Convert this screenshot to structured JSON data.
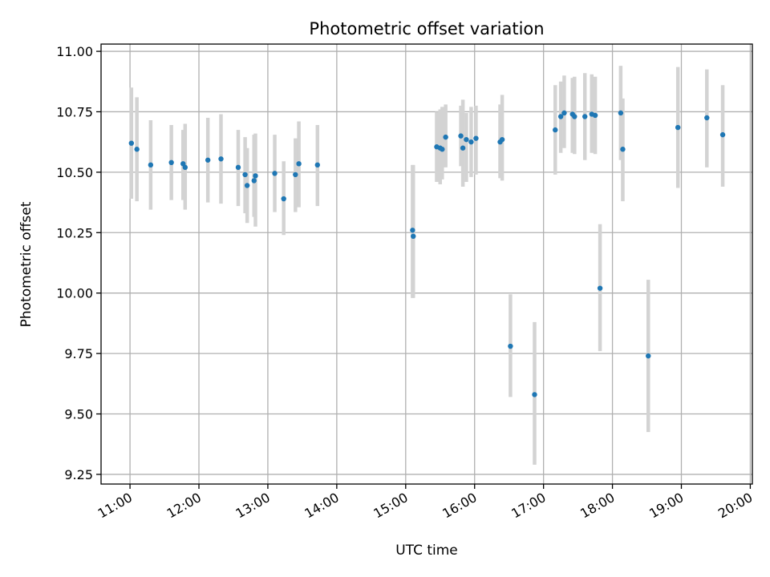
{
  "chart_data": {
    "type": "scatter",
    "title": "Photometric offset variation",
    "xlabel": "UTC time",
    "ylabel": "Photometric offset",
    "x_unit": "hours UTC",
    "xlim": [
      10.58,
      20.03
    ],
    "ylim": [
      9.21,
      11.03
    ],
    "x_ticks": [
      11,
      12,
      13,
      14,
      15,
      16,
      17,
      18,
      19,
      20
    ],
    "x_tick_labels": [
      "11:00",
      "12:00",
      "13:00",
      "14:00",
      "15:00",
      "16:00",
      "17:00",
      "18:00",
      "19:00",
      "20:00"
    ],
    "y_ticks": [
      9.25,
      9.5,
      9.75,
      10.0,
      10.25,
      10.5,
      10.75,
      11.0
    ],
    "y_tick_labels": [
      "9.25",
      "9.50",
      "9.75",
      "10.00",
      "10.25",
      "10.50",
      "10.75",
      "11.00"
    ],
    "grid": true,
    "colors": {
      "marker": "#1f77b4",
      "errorbar": "#d3d3d3",
      "grid": "#b0b0b0",
      "axes": "#000000"
    },
    "series": [
      {
        "x": [
          11.02,
          11.1,
          11.3,
          11.6,
          11.77,
          11.8,
          12.13,
          12.32,
          12.57,
          12.67,
          12.7,
          12.8,
          12.82,
          13.1,
          13.23,
          13.4,
          13.45,
          13.72,
          15.1,
          15.11,
          15.45,
          15.5,
          15.53,
          15.58,
          15.8,
          15.83,
          15.88,
          15.95,
          16.02,
          16.37,
          16.4,
          16.52,
          16.87,
          17.17,
          17.25,
          17.3,
          17.42,
          17.45,
          17.6,
          17.7,
          17.75,
          17.82,
          18.12,
          18.15,
          18.52,
          18.95,
          19.37,
          19.6
        ],
        "y": [
          10.62,
          10.595,
          10.53,
          10.54,
          10.535,
          10.52,
          10.55,
          10.555,
          10.52,
          10.49,
          10.445,
          10.465,
          10.485,
          10.495,
          10.39,
          10.49,
          10.535,
          10.53,
          10.26,
          10.235,
          10.605,
          10.6,
          10.595,
          10.645,
          10.65,
          10.6,
          10.635,
          10.625,
          10.64,
          10.625,
          10.635,
          9.78,
          9.58,
          10.675,
          10.73,
          10.745,
          10.74,
          10.73,
          10.73,
          10.74,
          10.735,
          10.02,
          10.745,
          10.595,
          9.74,
          10.685,
          10.725,
          10.655
        ],
        "y_lower": [
          10.39,
          10.38,
          10.345,
          10.385,
          10.385,
          10.345,
          10.375,
          10.37,
          10.36,
          10.33,
          10.29,
          10.315,
          10.275,
          10.335,
          10.24,
          10.335,
          10.355,
          10.36,
          9.98,
          9.98,
          10.46,
          10.45,
          10.47,
          10.52,
          10.525,
          10.44,
          10.46,
          10.48,
          10.49,
          10.475,
          10.465,
          9.57,
          9.29,
          10.49,
          10.58,
          10.6,
          10.58,
          10.575,
          10.55,
          10.58,
          10.575,
          9.76,
          10.55,
          10.38,
          9.425,
          10.435,
          10.52,
          10.44
        ],
        "y_upper": [
          10.85,
          10.81,
          10.715,
          10.695,
          10.675,
          10.7,
          10.725,
          10.74,
          10.675,
          10.645,
          10.6,
          10.655,
          10.66,
          10.655,
          10.545,
          10.64,
          10.71,
          10.695,
          10.53,
          10.53,
          10.75,
          10.76,
          10.77,
          10.78,
          10.775,
          10.8,
          10.745,
          10.77,
          10.775,
          10.78,
          10.82,
          9.995,
          9.88,
          10.86,
          10.875,
          10.9,
          10.89,
          10.895,
          10.91,
          10.905,
          10.895,
          10.285,
          10.94,
          10.805,
          10.055,
          10.935,
          10.925,
          10.86
        ]
      }
    ]
  }
}
